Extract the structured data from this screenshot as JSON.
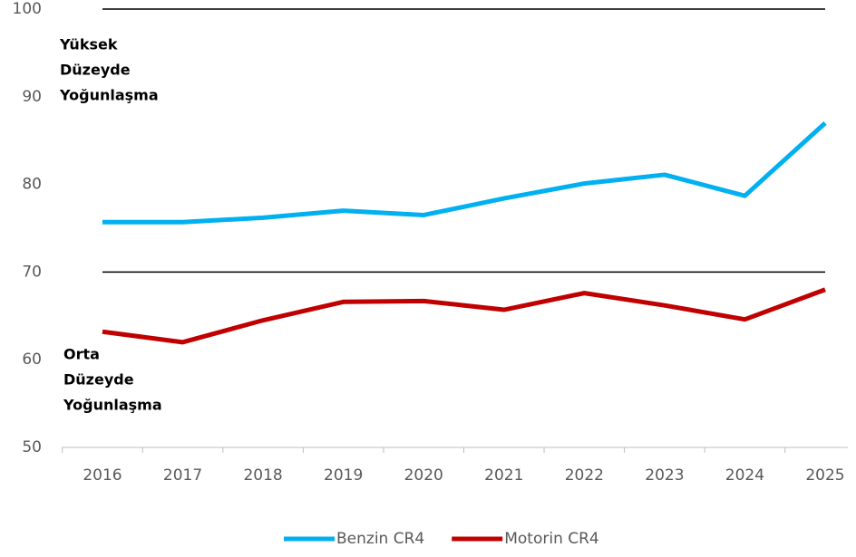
{
  "chart_data": {
    "type": "line",
    "categories": [
      "2016",
      "2017",
      "2018",
      "2019",
      "2020",
      "2021",
      "2022",
      "2023",
      "2024",
      "2025"
    ],
    "series": [
      {
        "name": "Benzin CR4",
        "color": "#00b0f0",
        "values": [
          75.7,
          75.7,
          76.2,
          77.0,
          76.5,
          78.4,
          80.1,
          81.1,
          78.7,
          87.0
        ]
      },
      {
        "name": "Motorin CR4",
        "color": "#c00000",
        "values": [
          63.2,
          62.0,
          64.5,
          66.6,
          66.7,
          65.7,
          67.6,
          66.2,
          64.6,
          68.0
        ]
      }
    ],
    "ylim": [
      50,
      100
    ],
    "yticks": [
      50,
      60,
      70,
      80,
      90,
      100
    ],
    "reference_lines": [
      100,
      70
    ],
    "annotations": [
      [
        "Yüksek",
        "Düzeyde",
        "Yoğunlaşma"
      ],
      [
        "Orta",
        "Düzeyde",
        "Yoğunlaşma"
      ]
    ],
    "legend": "bottom"
  }
}
